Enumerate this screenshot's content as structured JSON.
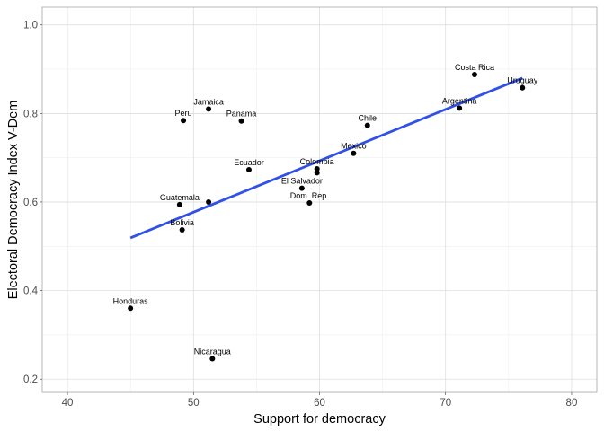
{
  "chart_data": {
    "type": "scatter",
    "xlabel": "Support for democracy",
    "ylabel": "Electoral Democracy Index V-Dem",
    "xlim": [
      38,
      82
    ],
    "ylim": [
      0.17,
      1.04
    ],
    "x_ticks": [
      40,
      50,
      60,
      70,
      80
    ],
    "x_minor": [
      45,
      55,
      65,
      75
    ],
    "y_ticks": [
      0.2,
      0.4,
      0.6,
      0.8,
      1.0
    ],
    "y_tick_labels": [
      "0.2",
      "0.4",
      "0.6",
      "0.8",
      "1.0"
    ],
    "y_minor": [
      0.3,
      0.5,
      0.7,
      0.9
    ],
    "grid": true,
    "point_color": "#000000",
    "fit_color": "#3050e8",
    "points": [
      {
        "label": "Costa Rica",
        "x": 72.3,
        "y": 0.888
      },
      {
        "label": "Uruguay",
        "x": 76.1,
        "y": 0.858
      },
      {
        "label": "Argentina",
        "x": 71.1,
        "y": 0.812
      },
      {
        "label": "Chile",
        "x": 63.8,
        "y": 0.773
      },
      {
        "label": "Mexico",
        "x": 62.7,
        "y": 0.71
      },
      {
        "label": "Colombia",
        "x": 59.8,
        "y": 0.675
      },
      {
        "label": "",
        "x": 59.8,
        "y": 0.666
      },
      {
        "label": "El Salvador",
        "x": 58.6,
        "y": 0.631
      },
      {
        "label": "Dom. Rep.",
        "x": 59.2,
        "y": 0.598
      },
      {
        "label": "Ecuador",
        "x": 54.4,
        "y": 0.673
      },
      {
        "label": "Jamaica",
        "x": 51.2,
        "y": 0.81
      },
      {
        "label": "Peru",
        "x": 49.2,
        "y": 0.784
      },
      {
        "label": "Panama",
        "x": 53.8,
        "y": 0.783
      },
      {
        "label": "Guatemala",
        "x": 48.9,
        "y": 0.594
      },
      {
        "label": "",
        "x": 51.2,
        "y": 0.6
      },
      {
        "label": "Bolivia",
        "x": 49.1,
        "y": 0.537
      },
      {
        "label": "Honduras",
        "x": 45.0,
        "y": 0.36
      },
      {
        "label": "Nicaragua",
        "x": 51.5,
        "y": 0.246
      }
    ],
    "fit_line": {
      "x": [
        45.0,
        76.1
      ],
      "y": [
        0.519,
        0.88
      ]
    }
  }
}
